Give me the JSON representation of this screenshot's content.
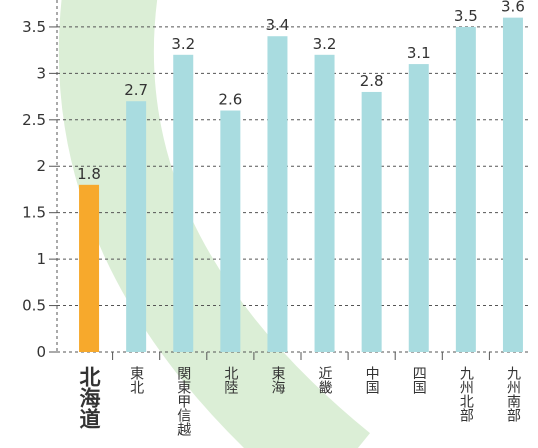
{
  "chart_data": {
    "type": "bar",
    "categories": [
      "北海道",
      "東北",
      "関東甲信越",
      "北陸",
      "東海",
      "近畿",
      "中国",
      "四国",
      "九州北部",
      "九州南部"
    ],
    "values": [
      1.8,
      2.7,
      3.2,
      2.6,
      3.4,
      3.2,
      2.8,
      3.1,
      3.5,
      3.6
    ],
    "colors": [
      "#f7a92c",
      "#a9dce0",
      "#a9dce0",
      "#a9dce0",
      "#a9dce0",
      "#a9dce0",
      "#a9dce0",
      "#a9dce0",
      "#a9dce0",
      "#a9dce0"
    ],
    "label_colors": [
      "#e8392c",
      "#333333",
      "#333333",
      "#333333",
      "#333333",
      "#333333",
      "#333333",
      "#333333",
      "#333333",
      "#333333"
    ],
    "ylim": [
      0,
      3.79
    ],
    "yticks": [
      0,
      0.5,
      1,
      1.5,
      2,
      2.5,
      3,
      3.5
    ],
    "grid": true
  }
}
